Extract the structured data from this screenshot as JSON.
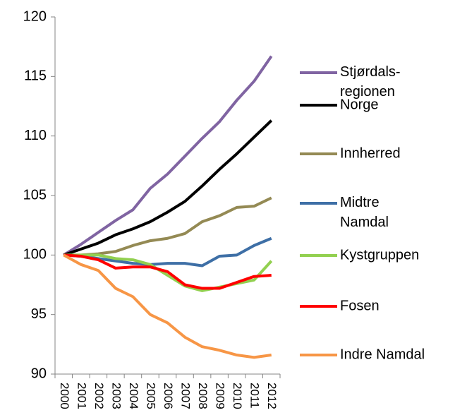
{
  "chart_data": {
    "type": "line",
    "categories": [
      "2000",
      "2001",
      "2002",
      "2003",
      "2004",
      "2005",
      "2006",
      "2007",
      "2008",
      "2009",
      "2010",
      "2011",
      "2012"
    ],
    "ylim": [
      90,
      120
    ],
    "yticks": [
      90,
      95,
      100,
      105,
      110,
      115,
      120
    ],
    "series": [
      {
        "name": "Stjørdals-regionen",
        "color": "#8064a2",
        "values": [
          100,
          100.9,
          101.9,
          102.9,
          103.8,
          105.6,
          106.8,
          108.3,
          109.8,
          111.2,
          113.0,
          114.6,
          116.7
        ]
      },
      {
        "name": "Norge",
        "color": "#000000",
        "values": [
          100,
          100.5,
          101.0,
          101.7,
          102.2,
          102.8,
          103.6,
          104.5,
          105.8,
          107.2,
          108.5,
          109.9,
          111.3
        ]
      },
      {
        "name": "Innherred",
        "color": "#948a54",
        "values": [
          100,
          100.0,
          100.1,
          100.3,
          100.8,
          101.2,
          101.4,
          101.8,
          102.8,
          103.3,
          104.0,
          104.1,
          104.8
        ]
      },
      {
        "name": "Midtre Namdal",
        "color": "#3e6fa6",
        "values": [
          100,
          99.9,
          99.7,
          99.5,
          99.3,
          99.2,
          99.3,
          99.3,
          99.1,
          99.9,
          100.0,
          100.8,
          101.4
        ]
      },
      {
        "name": "Kystgruppen",
        "color": "#92d050",
        "values": [
          100,
          100.0,
          100.0,
          99.7,
          99.6,
          99.2,
          98.3,
          97.4,
          97.0,
          97.3,
          97.6,
          97.9,
          99.5
        ]
      },
      {
        "name": "Fosen",
        "color": "#ff0000",
        "values": [
          100,
          99.9,
          99.6,
          98.9,
          99.0,
          99.0,
          98.6,
          97.5,
          97.2,
          97.2,
          97.7,
          98.2,
          98.3
        ]
      },
      {
        "name": "Indre Namdal",
        "color": "#f79646",
        "values": [
          100,
          99.2,
          98.7,
          97.2,
          96.5,
          95.0,
          94.3,
          93.1,
          92.3,
          92.0,
          91.6,
          91.4,
          91.6
        ]
      }
    ]
  }
}
